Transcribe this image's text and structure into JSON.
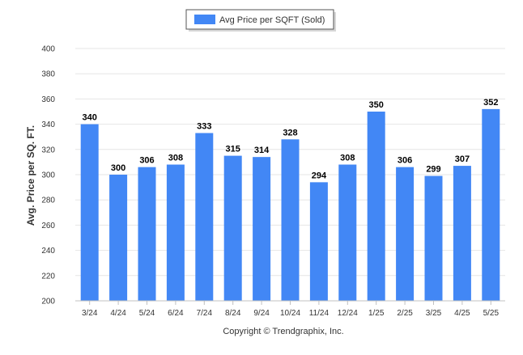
{
  "chart_data": {
    "type": "bar",
    "categories": [
      "3/24",
      "4/24",
      "5/24",
      "6/24",
      "7/24",
      "8/24",
      "9/24",
      "10/24",
      "11/24",
      "12/24",
      "1/25",
      "2/25",
      "3/25",
      "4/25",
      "5/25"
    ],
    "series": [
      {
        "name": "Avg Price per SQFT (Sold)",
        "values": [
          340,
          300,
          306,
          308,
          333,
          315,
          314,
          328,
          294,
          308,
          350,
          306,
          299,
          307,
          352
        ],
        "color": "#4287f5"
      }
    ],
    "ylabel": "Avg. Price per SQ. FT.",
    "xlabel": "",
    "ylim": [
      200,
      400
    ],
    "yticks": [
      200,
      220,
      240,
      260,
      280,
      300,
      320,
      340,
      360,
      380,
      400
    ],
    "grid": true,
    "legend_position": "top-center",
    "data_labels": true
  },
  "footer": {
    "copyright": "Copyright © Trendgraphix, Inc."
  },
  "colors": {
    "bar": "#4287f5",
    "grid": "#e6e6e6",
    "axis": "#c0c0c0"
  }
}
